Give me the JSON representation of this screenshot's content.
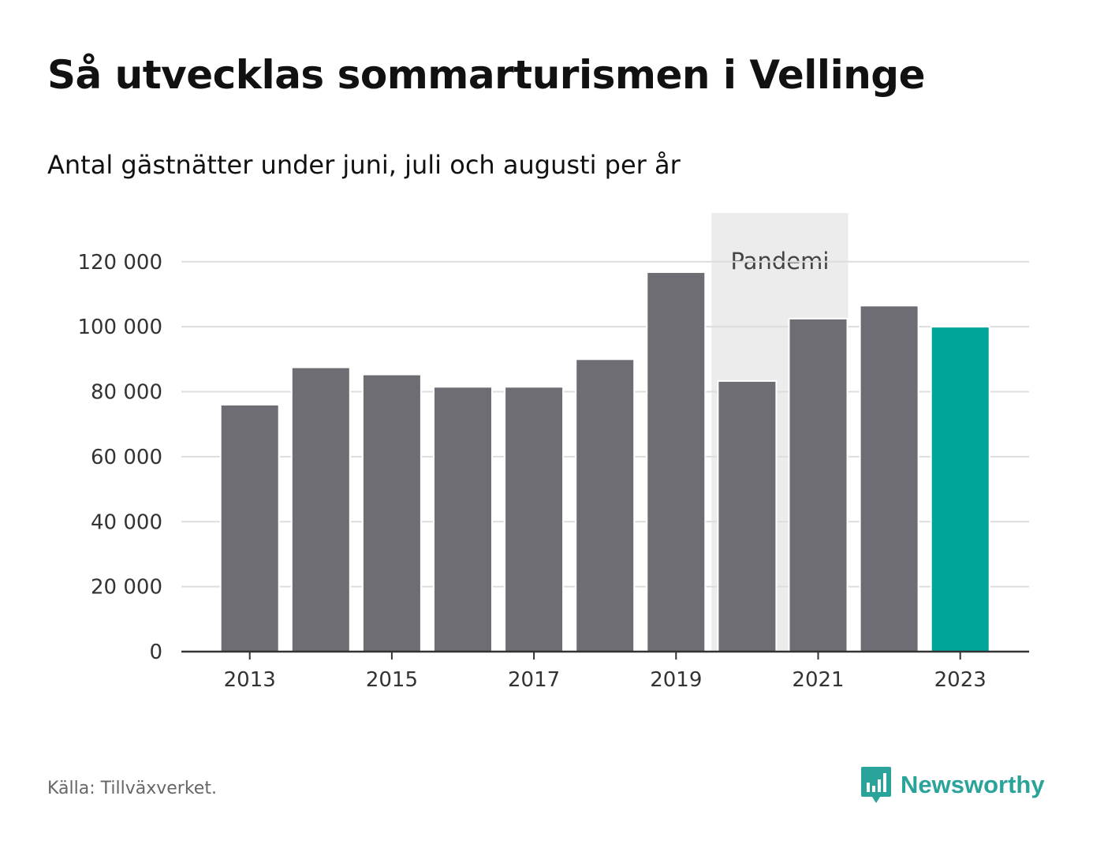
{
  "title": "Så utvecklas sommarturismen i Vellinge",
  "subtitle": "Antal gästnätter under juni, juli och augusti per år",
  "source": "Källa: Tillväxverket.",
  "brand": {
    "name": "Newsworthy",
    "color": "#2aa39a",
    "icon": "bar-chart-pin-icon"
  },
  "colors": {
    "bar": "#6e6d73",
    "highlight": "#00a59a",
    "band": "#ececec",
    "grid": "#dddddd",
    "axis": "#333333"
  },
  "chart_data": {
    "type": "bar",
    "title": "Så utvecklas sommarturismen i Vellinge",
    "subtitle": "Antal gästnätter under juni, juli och augusti per år",
    "categories": [
      "2013",
      "2014",
      "2015",
      "2016",
      "2017",
      "2018",
      "2019",
      "2020",
      "2021",
      "2022",
      "2023"
    ],
    "values": [
      76000,
      87500,
      85300,
      81500,
      81500,
      90000,
      116800,
      83300,
      102500,
      106500,
      100000
    ],
    "highlight": "2023",
    "x_tick_labels": [
      "2013",
      "2015",
      "2017",
      "2019",
      "2021",
      "2023"
    ],
    "y_ticks": [
      0,
      20000,
      40000,
      60000,
      80000,
      100000,
      120000
    ],
    "y_tick_labels": [
      "0",
      "20 000",
      "40 000",
      "60 000",
      "80 000",
      "100 000",
      "120 000"
    ],
    "ylim": [
      0,
      135000
    ],
    "grid": true,
    "band": {
      "label": "Pandemi",
      "from": "2020",
      "to": "2021"
    }
  }
}
